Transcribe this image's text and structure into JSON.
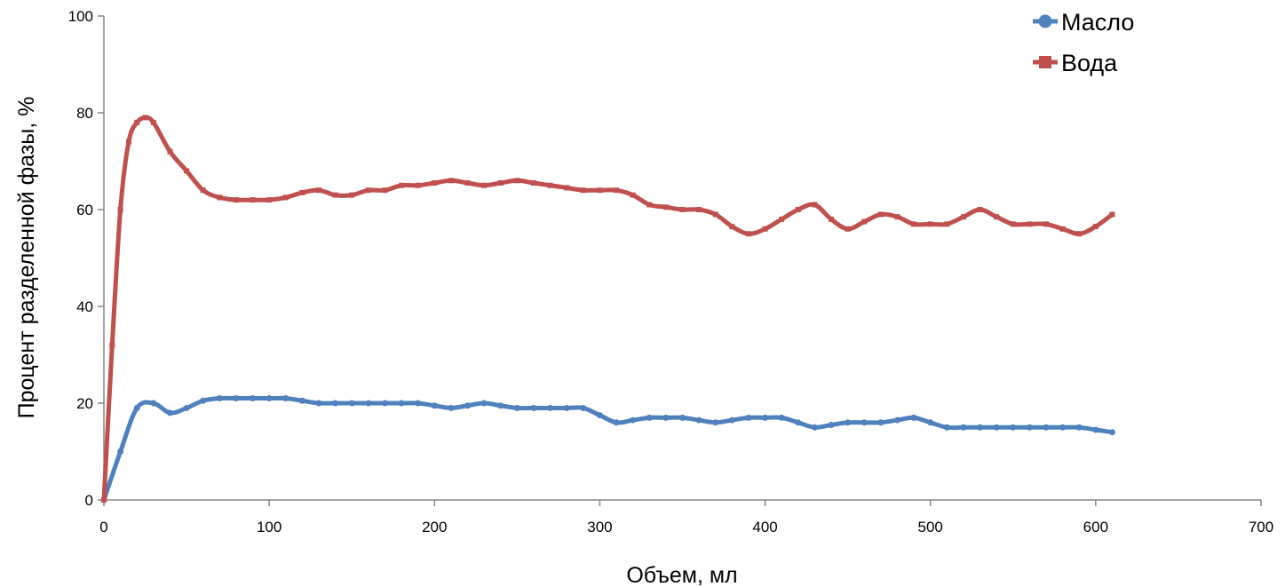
{
  "chart_data": {
    "type": "line",
    "title": "",
    "xlabel": "Объем, мл",
    "ylabel": "Процент разделенной фазы, %",
    "xlim": [
      0,
      700
    ],
    "ylim": [
      0,
      100
    ],
    "xticks": [
      0,
      100,
      200,
      300,
      400,
      500,
      600,
      700
    ],
    "yticks": [
      0,
      20,
      40,
      60,
      80,
      100
    ],
    "grid": false,
    "legend_position": "top-right",
    "series": [
      {
        "name": "Масло",
        "color": "#4f81bd",
        "marker": "circle",
        "x": [
          0,
          10,
          20,
          30,
          40,
          50,
          60,
          70,
          80,
          90,
          100,
          110,
          120,
          130,
          140,
          150,
          160,
          170,
          180,
          190,
          200,
          210,
          220,
          230,
          240,
          250,
          260,
          270,
          280,
          290,
          300,
          310,
          320,
          330,
          340,
          350,
          360,
          370,
          380,
          390,
          400,
          410,
          420,
          430,
          440,
          450,
          460,
          470,
          480,
          490,
          500,
          510,
          520,
          530,
          540,
          550,
          560,
          570,
          580,
          590,
          600,
          610
        ],
        "y": [
          0,
          10,
          19,
          20,
          18,
          19,
          20.5,
          21,
          21,
          21,
          21,
          21,
          20.5,
          20,
          20,
          20,
          20,
          20,
          20,
          20,
          19.5,
          19,
          19.5,
          20,
          19.5,
          19,
          19,
          19,
          19,
          19,
          17.5,
          16,
          16.5,
          17,
          17,
          17,
          16.5,
          16,
          16.5,
          17,
          17,
          17,
          16,
          15,
          15.5,
          16,
          16,
          16,
          16.5,
          17,
          16,
          15,
          15,
          15,
          15,
          15,
          15,
          15,
          15,
          15,
          14.5,
          14
        ]
      },
      {
        "name": "Вода",
        "color": "#c0504d",
        "marker": "square",
        "x": [
          0,
          5,
          10,
          15,
          20,
          25,
          30,
          40,
          50,
          60,
          70,
          80,
          90,
          100,
          110,
          120,
          130,
          140,
          150,
          160,
          170,
          180,
          190,
          200,
          210,
          220,
          230,
          240,
          250,
          260,
          270,
          280,
          290,
          300,
          310,
          320,
          330,
          340,
          350,
          360,
          370,
          380,
          390,
          400,
          410,
          420,
          430,
          440,
          450,
          460,
          470,
          480,
          490,
          500,
          510,
          520,
          530,
          540,
          550,
          560,
          570,
          580,
          590,
          600,
          610
        ],
        "y": [
          0,
          32,
          60,
          74,
          78,
          79,
          78,
          72,
          68,
          64,
          62.5,
          62,
          62,
          62,
          62.5,
          63.5,
          64,
          63,
          63,
          64,
          64,
          65,
          65,
          65.5,
          66,
          65.5,
          65,
          65.5,
          66,
          65.5,
          65,
          64.5,
          64,
          64,
          64,
          63,
          61,
          60.5,
          60,
          60,
          59,
          56.5,
          55,
          56,
          58,
          60,
          61,
          58,
          56,
          57.5,
          59,
          58.5,
          57,
          57,
          57,
          58.5,
          60,
          58.5,
          57,
          57,
          57,
          56,
          55,
          56.5,
          59
        ]
      }
    ]
  }
}
